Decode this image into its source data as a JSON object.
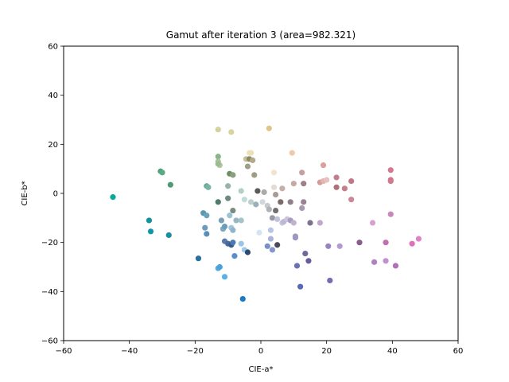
{
  "chart_data": {
    "type": "scatter",
    "title": "Gamut after iteration 3 (area=982.321)",
    "xlabel": "CIE-a*",
    "ylabel": "CIE-b*",
    "xlim": [
      -60,
      60
    ],
    "ylim": [
      -60,
      60
    ],
    "xticks": [
      -60,
      -40,
      -20,
      0,
      20,
      40,
      60
    ],
    "yticks": [
      -60,
      -40,
      -20,
      0,
      20,
      40,
      60
    ],
    "xtick_labels": [
      "−60",
      "−40",
      "−20",
      "0",
      "20",
      "40",
      "60"
    ],
    "ytick_labels": [
      "−60",
      "−40",
      "−20",
      "0",
      "20",
      "40",
      "60"
    ],
    "grid": false,
    "points": [
      {
        "x": -45,
        "y": -1.5,
        "color": "#0aa89a"
      },
      {
        "x": -34,
        "y": -11,
        "color": "#1492a0"
      },
      {
        "x": -33.5,
        "y": -15.5,
        "color": "#1494a8"
      },
      {
        "x": -28,
        "y": -17,
        "color": "#1a8fa0"
      },
      {
        "x": -30.5,
        "y": 9,
        "color": "#4aa07a"
      },
      {
        "x": -30,
        "y": 8.5,
        "color": "#5aaa84"
      },
      {
        "x": -27.5,
        "y": 3.5,
        "color": "#4e9a78"
      },
      {
        "x": -19,
        "y": -26.5,
        "color": "#2a6fa0"
      },
      {
        "x": -16.5,
        "y": 3,
        "color": "#6aaa98"
      },
      {
        "x": -16,
        "y": 2.5,
        "color": "#7ab4a4"
      },
      {
        "x": -17.5,
        "y": -8,
        "color": "#5a9ab0"
      },
      {
        "x": -16.5,
        "y": -9,
        "color": "#6aa4b8"
      },
      {
        "x": -17,
        "y": -14,
        "color": "#6a9cc0"
      },
      {
        "x": -16.5,
        "y": -16.5,
        "color": "#5a8eb8"
      },
      {
        "x": -13,
        "y": 26,
        "color": "#d2d29a"
      },
      {
        "x": -9,
        "y": 25,
        "color": "#d8d49e"
      },
      {
        "x": -13,
        "y": 15,
        "color": "#8ab48a"
      },
      {
        "x": -13,
        "y": 13,
        "color": "#a6c49a"
      },
      {
        "x": -12.5,
        "y": 11.5,
        "color": "#b2c8a0"
      },
      {
        "x": -13,
        "y": 12,
        "color": "#9cbc92"
      },
      {
        "x": -13,
        "y": -3.5,
        "color": "#507a6e"
      },
      {
        "x": -13,
        "y": -30.5,
        "color": "#58a8e0"
      },
      {
        "x": -12.5,
        "y": -30,
        "color": "#4aa0d8"
      },
      {
        "x": -11,
        "y": -34,
        "color": "#5ab2e6"
      },
      {
        "x": -12,
        "y": -11,
        "color": "#7aa0b8"
      },
      {
        "x": -11.5,
        "y": -14.5,
        "color": "#80aac4"
      },
      {
        "x": -11,
        "y": -13.5,
        "color": "#6a9cc0"
      },
      {
        "x": -11,
        "y": -19.5,
        "color": "#5a7aa8"
      },
      {
        "x": -10,
        "y": -20.5,
        "color": "#4a6aa0"
      },
      {
        "x": -10,
        "y": -2,
        "color": "#6a8a84"
      },
      {
        "x": -10,
        "y": 3,
        "color": "#94b4a8"
      },
      {
        "x": -9.5,
        "y": 8,
        "color": "#6e8e6a"
      },
      {
        "x": -8.5,
        "y": 7.5,
        "color": "#8aa07a"
      },
      {
        "x": -9.5,
        "y": -9,
        "color": "#9ac4d4"
      },
      {
        "x": -9,
        "y": -14,
        "color": "#a0c8dc"
      },
      {
        "x": -8.5,
        "y": -15,
        "color": "#90b4cc"
      },
      {
        "x": -9,
        "y": -21,
        "color": "#3a5a8a"
      },
      {
        "x": -8.5,
        "y": -20,
        "color": "#4a7ab0"
      },
      {
        "x": -8.5,
        "y": -7,
        "color": "#7a8c80"
      },
      {
        "x": -8,
        "y": -25.5,
        "color": "#5a8ec8"
      },
      {
        "x": -7.5,
        "y": -11,
        "color": "#94b8c4"
      },
      {
        "x": -6,
        "y": -11,
        "color": "#a4c4c8"
      },
      {
        "x": -6,
        "y": 1,
        "color": "#b4d0c4"
      },
      {
        "x": -6,
        "y": -20.5,
        "color": "#9cc4e4"
      },
      {
        "x": -5.5,
        "y": -43,
        "color": "#1a7ac8"
      },
      {
        "x": -5,
        "y": -23,
        "color": "#a0c8e8"
      },
      {
        "x": -5,
        "y": -2.5,
        "color": "#c4dcd8"
      },
      {
        "x": -4,
        "y": -24,
        "color": "#2a4a70"
      },
      {
        "x": -4.5,
        "y": 14,
        "color": "#c4c098"
      },
      {
        "x": -4,
        "y": 11,
        "color": "#a0a088"
      },
      {
        "x": -3.5,
        "y": 14,
        "color": "#8a8a6a"
      },
      {
        "x": -3.5,
        "y": 16.5,
        "color": "#f2e2bc"
      },
      {
        "x": -3,
        "y": 16.5,
        "color": "#ece0b8"
      },
      {
        "x": -3,
        "y": -3.5,
        "color": "#bcd0d0"
      },
      {
        "x": -2.5,
        "y": 13.5,
        "color": "#b4a888"
      },
      {
        "x": -2,
        "y": 7.5,
        "color": "#a09c84"
      },
      {
        "x": -1.5,
        "y": -4.5,
        "color": "#9ab0b8"
      },
      {
        "x": -1,
        "y": 1,
        "color": "#5a5a58"
      },
      {
        "x": -0.5,
        "y": -16,
        "color": "#d4e4f4"
      },
      {
        "x": 0.5,
        "y": -3.5,
        "color": "#d0d8dc"
      },
      {
        "x": 1,
        "y": 0.5,
        "color": "#aaaaa8"
      },
      {
        "x": 2.5,
        "y": 26.5,
        "color": "#e0c48a"
      },
      {
        "x": 2,
        "y": -5,
        "color": "#c8c8cc"
      },
      {
        "x": 2,
        "y": -21.5,
        "color": "#7890c8"
      },
      {
        "x": 2.5,
        "y": -6.5,
        "color": "#b0b0b8"
      },
      {
        "x": 3,
        "y": -18.5,
        "color": "#a8b4dc"
      },
      {
        "x": 3,
        "y": -15,
        "color": "#b8c4e4"
      },
      {
        "x": 3.5,
        "y": -23,
        "color": "#8498c8"
      },
      {
        "x": 3.5,
        "y": -10,
        "color": "#9898a8"
      },
      {
        "x": 4,
        "y": 2.5,
        "color": "#e4dcd4"
      },
      {
        "x": 4,
        "y": 8.5,
        "color": "#f0e4d0"
      },
      {
        "x": 4.5,
        "y": -0.5,
        "color": "#a89a94"
      },
      {
        "x": 4.5,
        "y": -7,
        "color": "#747070"
      },
      {
        "x": 5,
        "y": -21,
        "color": "#4a4a58"
      },
      {
        "x": 5,
        "y": -10.5,
        "color": "#c0c4d8"
      },
      {
        "x": 6,
        "y": -3.5,
        "color": "#7a6a68"
      },
      {
        "x": 6.5,
        "y": 2,
        "color": "#c4b0a8"
      },
      {
        "x": 6.5,
        "y": -12,
        "color": "#c8c4dc"
      },
      {
        "x": 7,
        "y": -11.5,
        "color": "#bcb8d4"
      },
      {
        "x": 8,
        "y": -10.5,
        "color": "#ccc4d8"
      },
      {
        "x": 9,
        "y": -3.5,
        "color": "#908088"
      },
      {
        "x": 9,
        "y": -11,
        "color": "#a89cc0"
      },
      {
        "x": 9.5,
        "y": 16.5,
        "color": "#eccca8"
      },
      {
        "x": 10,
        "y": 4,
        "color": "#c8a8a4"
      },
      {
        "x": 10,
        "y": -12,
        "color": "#c0b4cc"
      },
      {
        "x": 10.5,
        "y": -18,
        "color": "#8c90b8"
      },
      {
        "x": 10.5,
        "y": -17.5,
        "color": "#a098c0"
      },
      {
        "x": 11,
        "y": -29.5,
        "color": "#6a70b4"
      },
      {
        "x": 12,
        "y": -38,
        "color": "#5a68b8"
      },
      {
        "x": 12.5,
        "y": 8.5,
        "color": "#c4a0a0"
      },
      {
        "x": 13,
        "y": 4,
        "color": "#a08088"
      },
      {
        "x": 12.5,
        "y": -6,
        "color": "#a898b0"
      },
      {
        "x": 13,
        "y": -3.5,
        "color": "#9a8494"
      },
      {
        "x": 13.5,
        "y": -24.5,
        "color": "#6a6aa0"
      },
      {
        "x": 14.5,
        "y": -27.5,
        "color": "#6a5c9c"
      },
      {
        "x": 15,
        "y": -12,
        "color": "#807090"
      },
      {
        "x": 18,
        "y": -12,
        "color": "#c0a8c8"
      },
      {
        "x": 18,
        "y": 4.5,
        "color": "#d49a98"
      },
      {
        "x": 19,
        "y": 11.5,
        "color": "#dca09a"
      },
      {
        "x": 19,
        "y": 5,
        "color": "#e0b4b0"
      },
      {
        "x": 20,
        "y": 5.5,
        "color": "#e8c0bc"
      },
      {
        "x": 20.5,
        "y": -21.5,
        "color": "#9a84c0"
      },
      {
        "x": 21,
        "y": -35.5,
        "color": "#7a6ab0"
      },
      {
        "x": 23,
        "y": 6.5,
        "color": "#c08090"
      },
      {
        "x": 23,
        "y": 2.5,
        "color": "#b07078"
      },
      {
        "x": 24,
        "y": -21.5,
        "color": "#b49ad0"
      },
      {
        "x": 25.5,
        "y": 2,
        "color": "#c4808a"
      },
      {
        "x": 27.5,
        "y": 5,
        "color": "#c07888"
      },
      {
        "x": 27.5,
        "y": -2.5,
        "color": "#c88898"
      },
      {
        "x": 30,
        "y": -20,
        "color": "#8a5a90"
      },
      {
        "x": 34,
        "y": -12,
        "color": "#d8a0d0"
      },
      {
        "x": 34.5,
        "y": -28,
        "color": "#b080c4"
      },
      {
        "x": 38,
        "y": -27.5,
        "color": "#c090d0"
      },
      {
        "x": 38,
        "y": -20,
        "color": "#c070b0"
      },
      {
        "x": 39.5,
        "y": 9.5,
        "color": "#d87890"
      },
      {
        "x": 39.5,
        "y": 5.5,
        "color": "#d06c84"
      },
      {
        "x": 39.5,
        "y": 5,
        "color": "#d4788c"
      },
      {
        "x": 39.5,
        "y": -8.5,
        "color": "#c888b8"
      },
      {
        "x": 41,
        "y": -29.5,
        "color": "#b070b8"
      },
      {
        "x": 46,
        "y": -20.5,
        "color": "#e070b8"
      },
      {
        "x": 48,
        "y": -18.5,
        "color": "#e080c8"
      }
    ]
  }
}
